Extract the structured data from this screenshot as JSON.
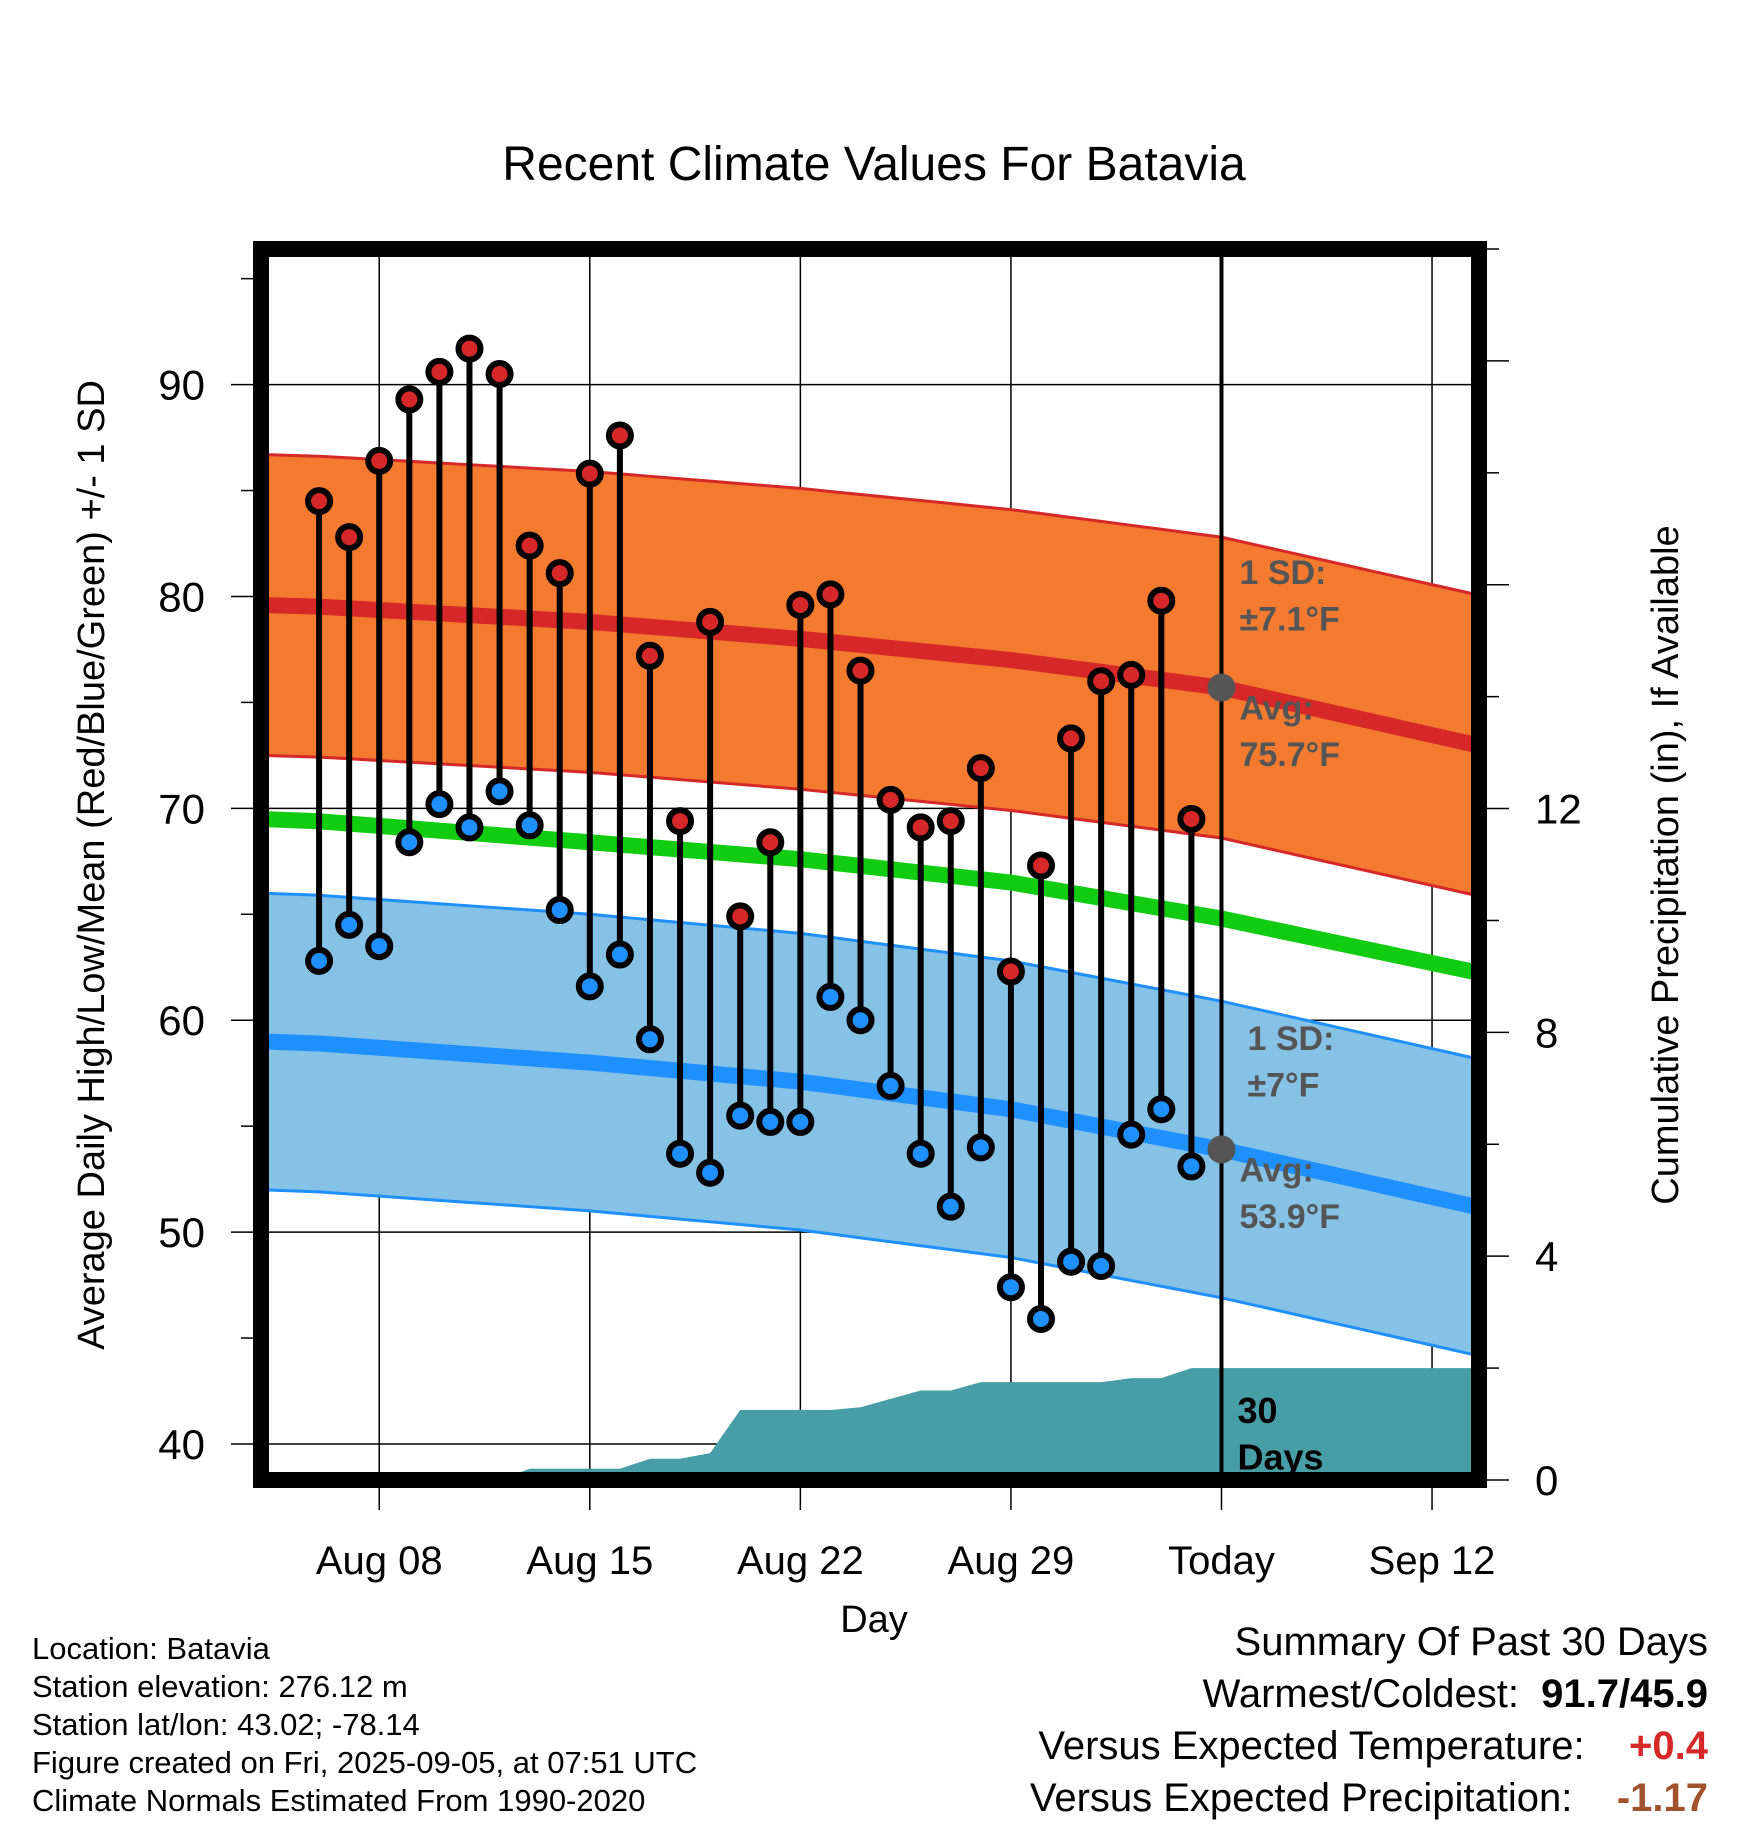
{
  "chart_data": {
    "type": "line",
    "title": "Recent Climate Values For Batavia",
    "xlabel": "Day",
    "ylabel": "Average Daily High/Low/Mean (Red/Blue/Green) +/- 1 SD",
    "ylabel_right": "Cumulative Precipitation (in), If Available",
    "ylim": [
      38.3,
      96.4
    ],
    "ylim_right": [
      0,
      22
    ],
    "x_tick_labels": [
      "Aug 08",
      "Aug 15",
      "Aug 22",
      "Aug 29",
      "Today",
      "Sep 12"
    ],
    "y_ticks": [
      40,
      50,
      60,
      70,
      80,
      90
    ],
    "y_right_ticks": [
      0,
      4,
      8,
      12
    ],
    "grid": true,
    "dates": [
      "2025-08-06",
      "2025-08-07",
      "2025-08-08",
      "2025-08-09",
      "2025-08-10",
      "2025-08-11",
      "2025-08-12",
      "2025-08-13",
      "2025-08-14",
      "2025-08-15",
      "2025-08-16",
      "2025-08-17",
      "2025-08-18",
      "2025-08-19",
      "2025-08-20",
      "2025-08-21",
      "2025-08-22",
      "2025-08-23",
      "2025-08-24",
      "2025-08-25",
      "2025-08-26",
      "2025-08-27",
      "2025-08-28",
      "2025-08-29",
      "2025-08-30",
      "2025-08-31",
      "2025-09-01",
      "2025-09-02",
      "2025-09-03",
      "2025-09-04"
    ],
    "highs": [
      84.5,
      82.8,
      86.4,
      89.3,
      90.6,
      91.7,
      90.5,
      82.4,
      81.1,
      85.8,
      87.6,
      77.2,
      69.4,
      78.8,
      64.9,
      68.4,
      79.6,
      80.1,
      76.5,
      70.4,
      69.1,
      69.4,
      71.9,
      62.3,
      67.3,
      73.3,
      76.0,
      76.3,
      79.8,
      69.5
    ],
    "lows": [
      62.8,
      64.5,
      63.5,
      68.4,
      70.2,
      69.1,
      70.8,
      69.2,
      65.2,
      61.6,
      63.1,
      59.1,
      53.7,
      52.8,
      55.5,
      55.2,
      55.2,
      61.1,
      60.0,
      56.9,
      53.7,
      51.2,
      54.0,
      47.4,
      45.9,
      48.6,
      48.4,
      54.6,
      55.8,
      53.1
    ],
    "normal_high": {
      "dates": [
        "2025-08-05",
        "2025-08-15",
        "2025-08-22",
        "2025-08-29",
        "2025-09-05",
        "2025-09-15"
      ],
      "values": [
        79.6,
        78.8,
        78.0,
        77.0,
        75.7,
        72.5
      ]
    },
    "normal_low": {
      "dates": [
        "2025-08-05",
        "2025-08-15",
        "2025-08-22",
        "2025-08-29",
        "2025-09-05",
        "2025-09-15"
      ],
      "values": [
        59.0,
        58.0,
        57.1,
        55.8,
        53.9,
        50.7
      ]
    },
    "normal_mean": {
      "dates": [
        "2025-08-05",
        "2025-08-15",
        "2025-08-22",
        "2025-08-29",
        "2025-09-05",
        "2025-09-15"
      ],
      "values": [
        69.5,
        68.4,
        67.6,
        66.5,
        64.8,
        61.8
      ]
    },
    "high_sd": 7.1,
    "low_sd": 7.0,
    "precip_cumulative": {
      "dates": [
        "2025-08-05",
        "2025-08-11",
        "2025-08-12",
        "2025-08-13",
        "2025-08-14",
        "2025-08-15",
        "2025-08-16",
        "2025-08-17",
        "2025-08-18",
        "2025-08-19",
        "2025-08-20",
        "2025-08-21",
        "2025-08-22",
        "2025-08-23",
        "2025-08-24",
        "2025-08-25",
        "2025-08-26",
        "2025-08-27",
        "2025-08-28",
        "2025-08-29",
        "2025-08-30",
        "2025-08-31",
        "2025-09-01",
        "2025-09-02",
        "2025-09-03",
        "2025-09-04",
        "2025-09-05",
        "2025-09-15"
      ],
      "values": [
        0,
        0,
        0,
        0.2,
        0.2,
        0.2,
        0.2,
        0.38,
        0.38,
        0.48,
        1.25,
        1.25,
        1.25,
        1.25,
        1.3,
        1.45,
        1.6,
        1.6,
        1.75,
        1.75,
        1.75,
        1.75,
        1.75,
        1.82,
        1.82,
        2.0,
        2.0,
        2.0
      ]
    },
    "series": [
      {
        "name": "High"
      },
      {
        "name": "Low"
      },
      {
        "name": "Mean"
      }
    ],
    "annotations": {
      "high_sd_label": "1 SD:",
      "high_sd_value": "±7.1°F",
      "high_avg_label": "Avg:",
      "high_avg_value": "75.7°F",
      "low_sd_label": "1 SD:",
      "low_sd_value": "±7°F",
      "low_avg_label": "Avg:",
      "low_avg_value": "53.9°F",
      "precip_label_1": "30",
      "precip_label_2": "Days"
    }
  },
  "footer": {
    "location": "Location: Batavia",
    "elevation": "Station elevation: 276.12 m",
    "latlon": "Station lat/lon: 43.02; -78.14",
    "created": "Figure created on Fri, 2025-09-05, at 07:51 UTC",
    "normals": "Climate Normals Estimated From 1990-2020"
  },
  "summary": {
    "heading": "Summary Of Past 30 Days",
    "warm_cold_label": "Warmest/Coldest:",
    "warm_cold_value": "91.7/45.9",
    "temp_label": "Versus Expected Temperature:",
    "temp_value": "+0.4",
    "precip_label": "Versus Expected Precipitation:",
    "precip_value": "-1.17"
  },
  "colors": {
    "high_band": "#f47a30",
    "high_line": "#d62828",
    "low_band": "#86c1e6",
    "low_line": "#1e90ff",
    "mean_line": "#11cc11",
    "precip_fill": "#489ea6",
    "high_dot": "#d62828",
    "low_dot": "#1e90ff",
    "anno_text": "#555555",
    "temp_value": "#d62828",
    "precip_value": "#a0522d"
  }
}
